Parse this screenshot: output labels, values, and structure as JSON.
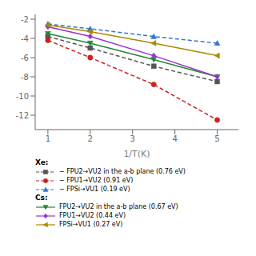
{
  "chart_data": {
    "type": "line",
    "xlabel": "1/T(K)",
    "x": [
      1,
      2,
      3.5,
      5
    ],
    "series": [
      {
        "name": "− FPU2→VU2 in the a-b plane (0.76 eV)",
        "group": "Xe:",
        "color": "#555555",
        "line_style": "dashed",
        "marker": "square",
        "values": [
          -3.8,
          -5.0,
          -6.9,
          -8.5
        ]
      },
      {
        "name": "− FPU1→VU2 (0.91 eV)",
        "group": "Xe:",
        "color": "#cc2222",
        "line_style": "dashed",
        "marker": "circle",
        "values": [
          -4.2,
          -6.0,
          -8.8,
          -12.5
        ]
      },
      {
        "name": "− FPSi→VU1 (0.19 eV)",
        "group": "Xe:",
        "color": "#3377cc",
        "line_style": "dashed",
        "marker": "triangle",
        "values": [
          -2.5,
          -3.0,
          -3.8,
          -4.5
        ]
      },
      {
        "name": "FPU2→VU2 in the a-b plane (0.67 eV)",
        "group": "Cs:",
        "color": "#228833",
        "line_style": "solid",
        "marker": "triangle_down",
        "values": [
          -3.5,
          -4.5,
          -6.2,
          -8.0
        ]
      },
      {
        "name": "FPU1→VU2 (0.44 eV)",
        "group": "Cs:",
        "color": "#9933cc",
        "line_style": "solid",
        "marker": "diamond",
        "values": [
          -2.8,
          -3.8,
          -5.8,
          -8.0
        ]
      },
      {
        "name": "FPSi→VU1 (0.27 eV)",
        "group": "Cs:",
        "color": "#aa8800",
        "line_style": "solid",
        "marker": "triangle_left",
        "values": [
          -2.6,
          -3.3,
          -4.5,
          -5.8
        ]
      }
    ],
    "xlim": [
      0.7,
      5.5
    ],
    "ylim": [
      -13.5,
      -1.5
    ],
    "xticks": [
      1,
      2,
      3,
      4,
      5
    ],
    "yticks": [
      -12,
      -10,
      -8,
      -6,
      -4,
      -2
    ],
    "grid": false,
    "legend": "bottom"
  }
}
